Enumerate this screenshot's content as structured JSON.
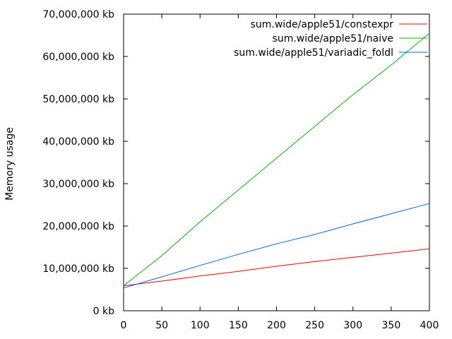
{
  "chart_data": {
    "type": "line",
    "title": "",
    "xlabel": "",
    "ylabel": "Memory usage",
    "xlim": [
      0,
      400
    ],
    "ylim": [
      0,
      70000000
    ],
    "x_ticks": [
      0,
      50,
      100,
      150,
      200,
      250,
      300,
      350,
      400
    ],
    "y_ticks": [
      0,
      10000000,
      20000000,
      30000000,
      40000000,
      50000000,
      60000000,
      70000000
    ],
    "x_tick_labels": [
      "0",
      "50",
      "100",
      "150",
      "200",
      "250",
      "300",
      "350",
      "400"
    ],
    "y_tick_labels": [
      "0 kb",
      "10,000,000 kb",
      "20,000,000 kb",
      "30,000,000 kb",
      "40,000,000 kb",
      "50,000,000 kb",
      "60,000,000 kb",
      "70,000,000 kb"
    ],
    "grid": false,
    "legend_position": "top-right",
    "series": [
      {
        "name": "sum.wide/apple51/constexpr",
        "color": "#ff0000",
        "x": [
          0,
          50,
          100,
          150,
          200,
          250,
          300,
          350,
          400
        ],
        "y": [
          5900000,
          7000000,
          8200000,
          9300000,
          10500000,
          11600000,
          12600000,
          13600000,
          14600000
        ]
      },
      {
        "name": "sum.wide/apple51/naive",
        "color": "#00bb00",
        "x": [
          0,
          50,
          100,
          150,
          200,
          250,
          300,
          350,
          400
        ],
        "y": [
          5900000,
          13000000,
          21000000,
          28500000,
          36000000,
          43500000,
          51000000,
          58000000,
          65500000
        ]
      },
      {
        "name": "sum.wide/apple51/variadic_foldl",
        "color": "#0066ff",
        "x": [
          0,
          50,
          100,
          150,
          200,
          250,
          300,
          350,
          400
        ],
        "y": [
          5400000,
          8000000,
          10700000,
          13300000,
          15800000,
          18000000,
          20500000,
          22900000,
          25300000
        ]
      }
    ]
  }
}
